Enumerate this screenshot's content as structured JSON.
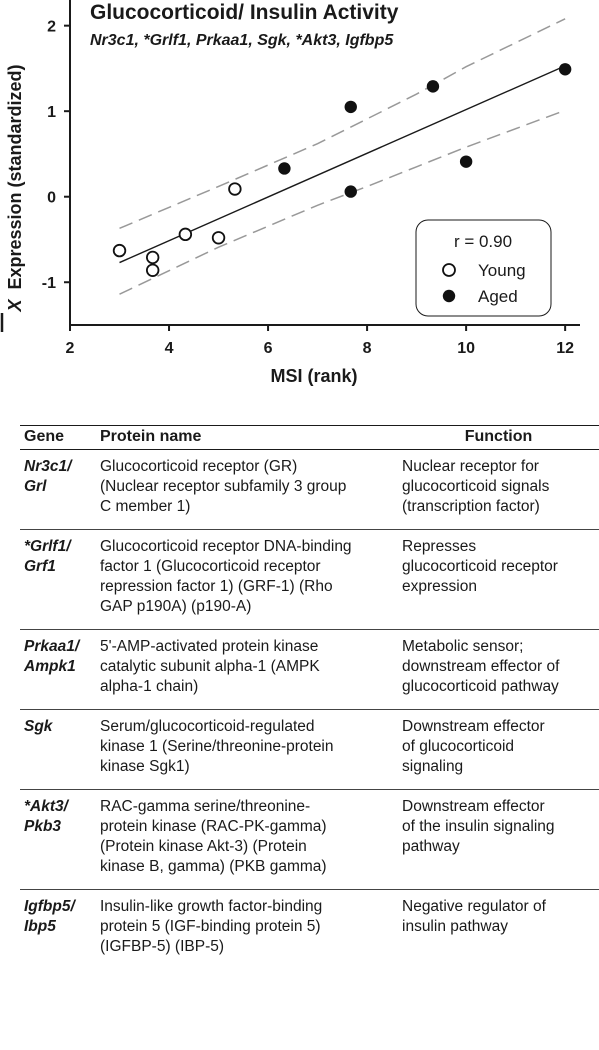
{
  "colors": {
    "axis": "#1a1a1a",
    "open_marker": "#ffffff",
    "filled_marker": "#111111",
    "ci_line": "#999999"
  },
  "chart_data": {
    "type": "scatter",
    "title": "Glucocorticoid/ Insulin Activity",
    "subtitle": "Nr3c1, *Grlf1, Prkaa1, Sgk, *Akt3, Igfbp5",
    "xlabel": "MSI (rank)",
    "ylabel_symbol": "X",
    "ylabel": "Expression (standardized)",
    "xlim": [
      2,
      12.3
    ],
    "ylim": [
      -1.5,
      2.3
    ],
    "xticks": [
      "2",
      "4",
      "6",
      "8",
      "10",
      "12"
    ],
    "xtick_values": [
      2,
      4,
      6,
      8,
      10,
      12
    ],
    "yticks": [
      "2",
      "1",
      "0",
      "-1"
    ],
    "ytick_values": [
      2,
      1,
      0,
      -1
    ],
    "legend_position": "bottom-right",
    "annotation": "r = 0.90",
    "series": [
      {
        "name": "Young",
        "marker": "open",
        "x": [
          3,
          3.67,
          3.67,
          4.33,
          5,
          5.33
        ],
        "y": [
          -0.63,
          -0.71,
          -0.86,
          -0.44,
          -0.48,
          0.09
        ]
      },
      {
        "name": "Aged",
        "marker": "filled",
        "x": [
          6.33,
          7.67,
          7.67,
          9.33,
          10,
          12
        ],
        "y": [
          0.33,
          1.05,
          0.06,
          1.29,
          0.41,
          1.49
        ]
      }
    ],
    "fit": {
      "x": [
        3,
        12
      ],
      "y": [
        -0.77,
        1.53
      ]
    },
    "ci_upper": {
      "x": [
        3,
        5,
        7,
        8,
        9,
        10,
        12
      ],
      "y": [
        -0.37,
        0.12,
        0.62,
        0.91,
        1.2,
        1.52,
        2.08
      ]
    },
    "ci_lower": {
      "x": [
        3,
        5,
        7,
        8,
        9,
        10,
        12
      ],
      "y": [
        -1.14,
        -0.59,
        -0.1,
        0.12,
        0.35,
        0.58,
        1.01
      ]
    }
  },
  "table": {
    "headers": {
      "gene": "Gene",
      "protein": "Protein name",
      "function": "Function"
    },
    "rows": [
      {
        "gene": [
          "Nr3c1/",
          "Grl"
        ],
        "protein": [
          "Glucocorticoid receptor (GR)",
          "(Nuclear receptor subfamily 3 group",
          "C member 1)"
        ],
        "function": [
          "Nuclear receptor for",
          "glucocorticoid signals",
          "(transcription factor)"
        ]
      },
      {
        "gene": [
          "*Grlf1/",
          "Grf1"
        ],
        "protein": [
          "Glucocorticoid receptor DNA-binding",
          "factor 1 (Glucocorticoid receptor",
          "repression factor 1) (GRF-1) (Rho",
          "GAP p190A) (p190-A)"
        ],
        "function": [
          "Represses",
          "glucocorticoid receptor",
          "expression"
        ]
      },
      {
        "gene": [
          "Prkaa1/",
          "Ampk1"
        ],
        "protein": [
          "5'-AMP-activated protein kinase",
          "catalytic subunit alpha-1 (AMPK",
          "alpha-1 chain)"
        ],
        "function": [
          "Metabolic sensor;",
          "downstream effector of",
          "glucocorticoid pathway"
        ]
      },
      {
        "gene": [
          "Sgk"
        ],
        "protein": [
          "Serum/glucocorticoid-regulated",
          "kinase 1 (Serine/threonine-protein",
          "kinase Sgk1)"
        ],
        "function": [
          "Downstream effector",
          "of glucocorticoid",
          "signaling"
        ]
      },
      {
        "gene": [
          "*Akt3/",
          "Pkb3"
        ],
        "protein": [
          "RAC-gamma serine/threonine-",
          "protein kinase (RAC-PK-gamma)",
          "(Protein kinase Akt-3) (Protein",
          "kinase B, gamma) (PKB gamma)"
        ],
        "function": [
          "Downstream effector",
          "of the insulin signaling",
          "pathway"
        ]
      },
      {
        "gene": [
          "Igfbp5/",
          "Ibp5"
        ],
        "protein": [
          "Insulin-like growth factor-binding",
          "protein 5 (IGF-binding protein 5)",
          "(IGFBP-5) (IBP-5)"
        ],
        "function": [
          "Negative regulator of",
          "insulin pathway"
        ]
      }
    ]
  }
}
